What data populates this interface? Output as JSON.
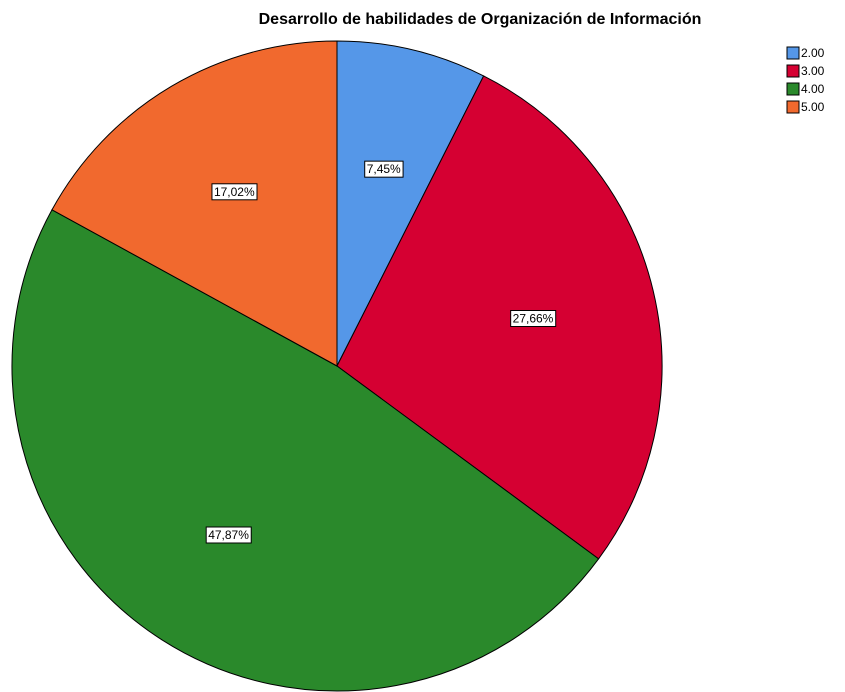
{
  "chart_data": {
    "type": "pie",
    "title": "Desarrollo de habilidades de Organización de Información",
    "categories": [
      "2.00",
      "3.00",
      "4.00",
      "5.00"
    ],
    "values": [
      7.45,
      27.66,
      47.87,
      17.02
    ],
    "value_labels": [
      "7,45%",
      "27,66%",
      "47,87%",
      "17,02%"
    ],
    "colors": [
      "#5597e8",
      "#d50032",
      "#2a892b",
      "#f1692e"
    ],
    "legend": "top-right"
  }
}
